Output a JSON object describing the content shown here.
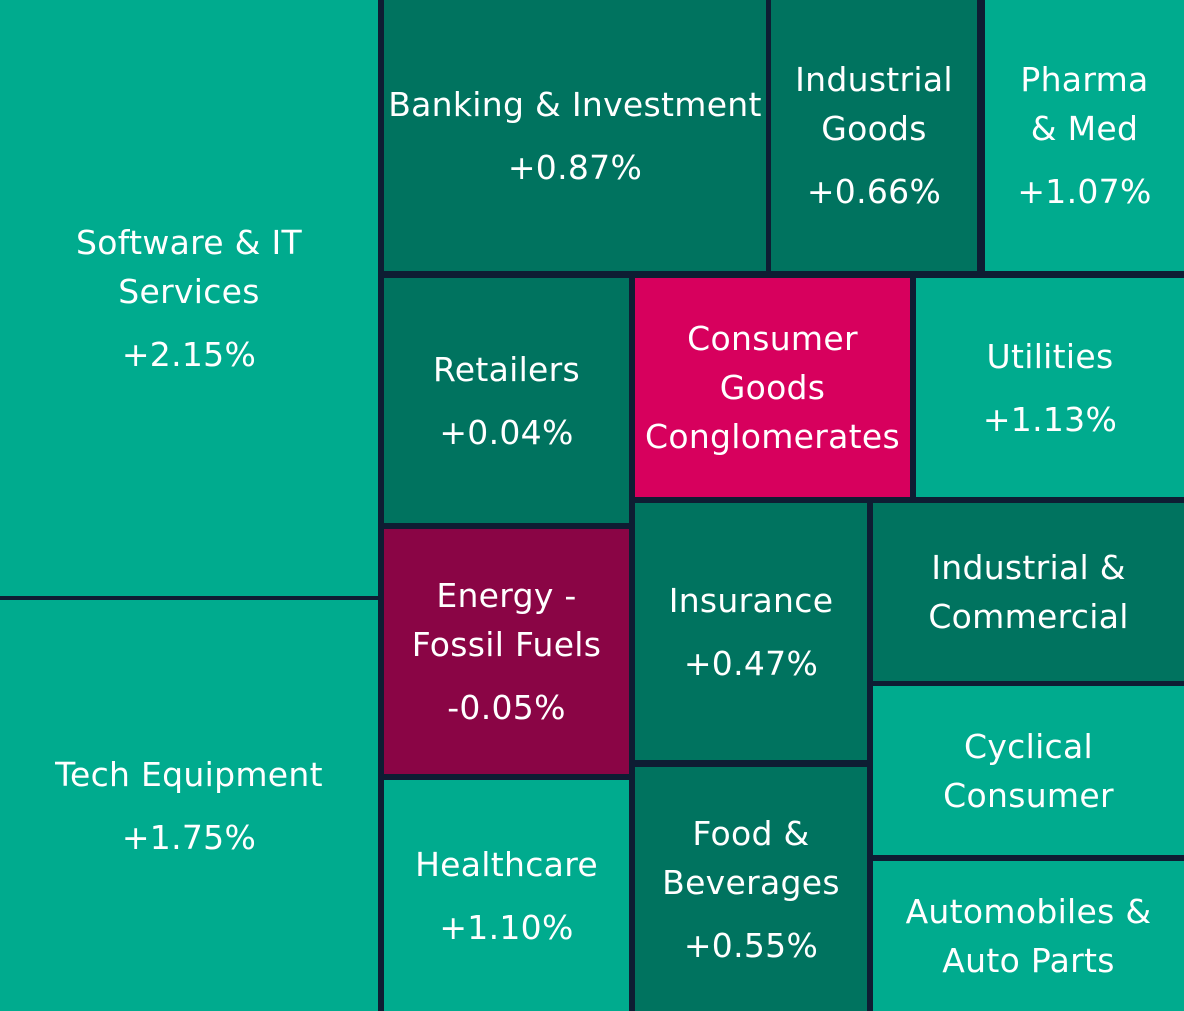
{
  "chart_data": {
    "type": "treemap",
    "title": "",
    "unit": "% change",
    "color_scale": {
      "strong_positive": "#00ab8e",
      "mild_positive": "#00735f",
      "mild_negative": "#8a0545",
      "strong_negative": "#d7005d"
    },
    "sectors": [
      {
        "id": "software-it-services",
        "label": "Software & IT Services",
        "change": "+2.15%",
        "value": 2.15,
        "color": "#00ab8e"
      },
      {
        "id": "tech-equipment",
        "label": "Tech Equipment",
        "change": "+1.75%",
        "value": 1.75,
        "color": "#00ab8e"
      },
      {
        "id": "banking-investment",
        "label": "Banking & Investment",
        "change": "+0.87%",
        "value": 0.87,
        "color": "#00735f"
      },
      {
        "id": "industrial-goods",
        "label": "Industrial\nGoods",
        "change": "+0.66%",
        "value": 0.66,
        "color": "#00735f"
      },
      {
        "id": "pharma-med",
        "label": "Pharma\n& Med",
        "change": "+1.07%",
        "value": 1.07,
        "color": "#00ab8e"
      },
      {
        "id": "retailers",
        "label": "Retailers",
        "change": "+0.04%",
        "value": 0.04,
        "color": "#00735f"
      },
      {
        "id": "consumer-goods-conglomerates",
        "label": "Consumer\nGoods\nConglomerates",
        "change": "",
        "value": null,
        "color": "#d7005d"
      },
      {
        "id": "utilities",
        "label": "Utilities",
        "change": "+1.13%",
        "value": 1.13,
        "color": "#00ab8e"
      },
      {
        "id": "energy-fossil-fuels",
        "label": "Energy -\nFossil Fuels",
        "change": "-0.05%",
        "value": -0.05,
        "color": "#8a0545"
      },
      {
        "id": "insurance",
        "label": "Insurance",
        "change": "+0.47%",
        "value": 0.47,
        "color": "#00735f"
      },
      {
        "id": "industrial-commercial",
        "label": "Industrial &\nCommercial",
        "change": "",
        "value": null,
        "color": "#00735f"
      },
      {
        "id": "cyclical-consumer",
        "label": "Cyclical\nConsumer",
        "change": "",
        "value": null,
        "color": "#00ab8e"
      },
      {
        "id": "healthcare",
        "label": "Healthcare",
        "change": "+1.10%",
        "value": 1.1,
        "color": "#00ab8e"
      },
      {
        "id": "food-beverages",
        "label": "Food &\nBeverages",
        "change": "+0.55%",
        "value": 0.55,
        "color": "#00735f"
      },
      {
        "id": "automobiles-auto-parts",
        "label": "Automobiles &\nAuto Parts",
        "change": "",
        "value": null,
        "color": "#00ab8e"
      }
    ]
  }
}
